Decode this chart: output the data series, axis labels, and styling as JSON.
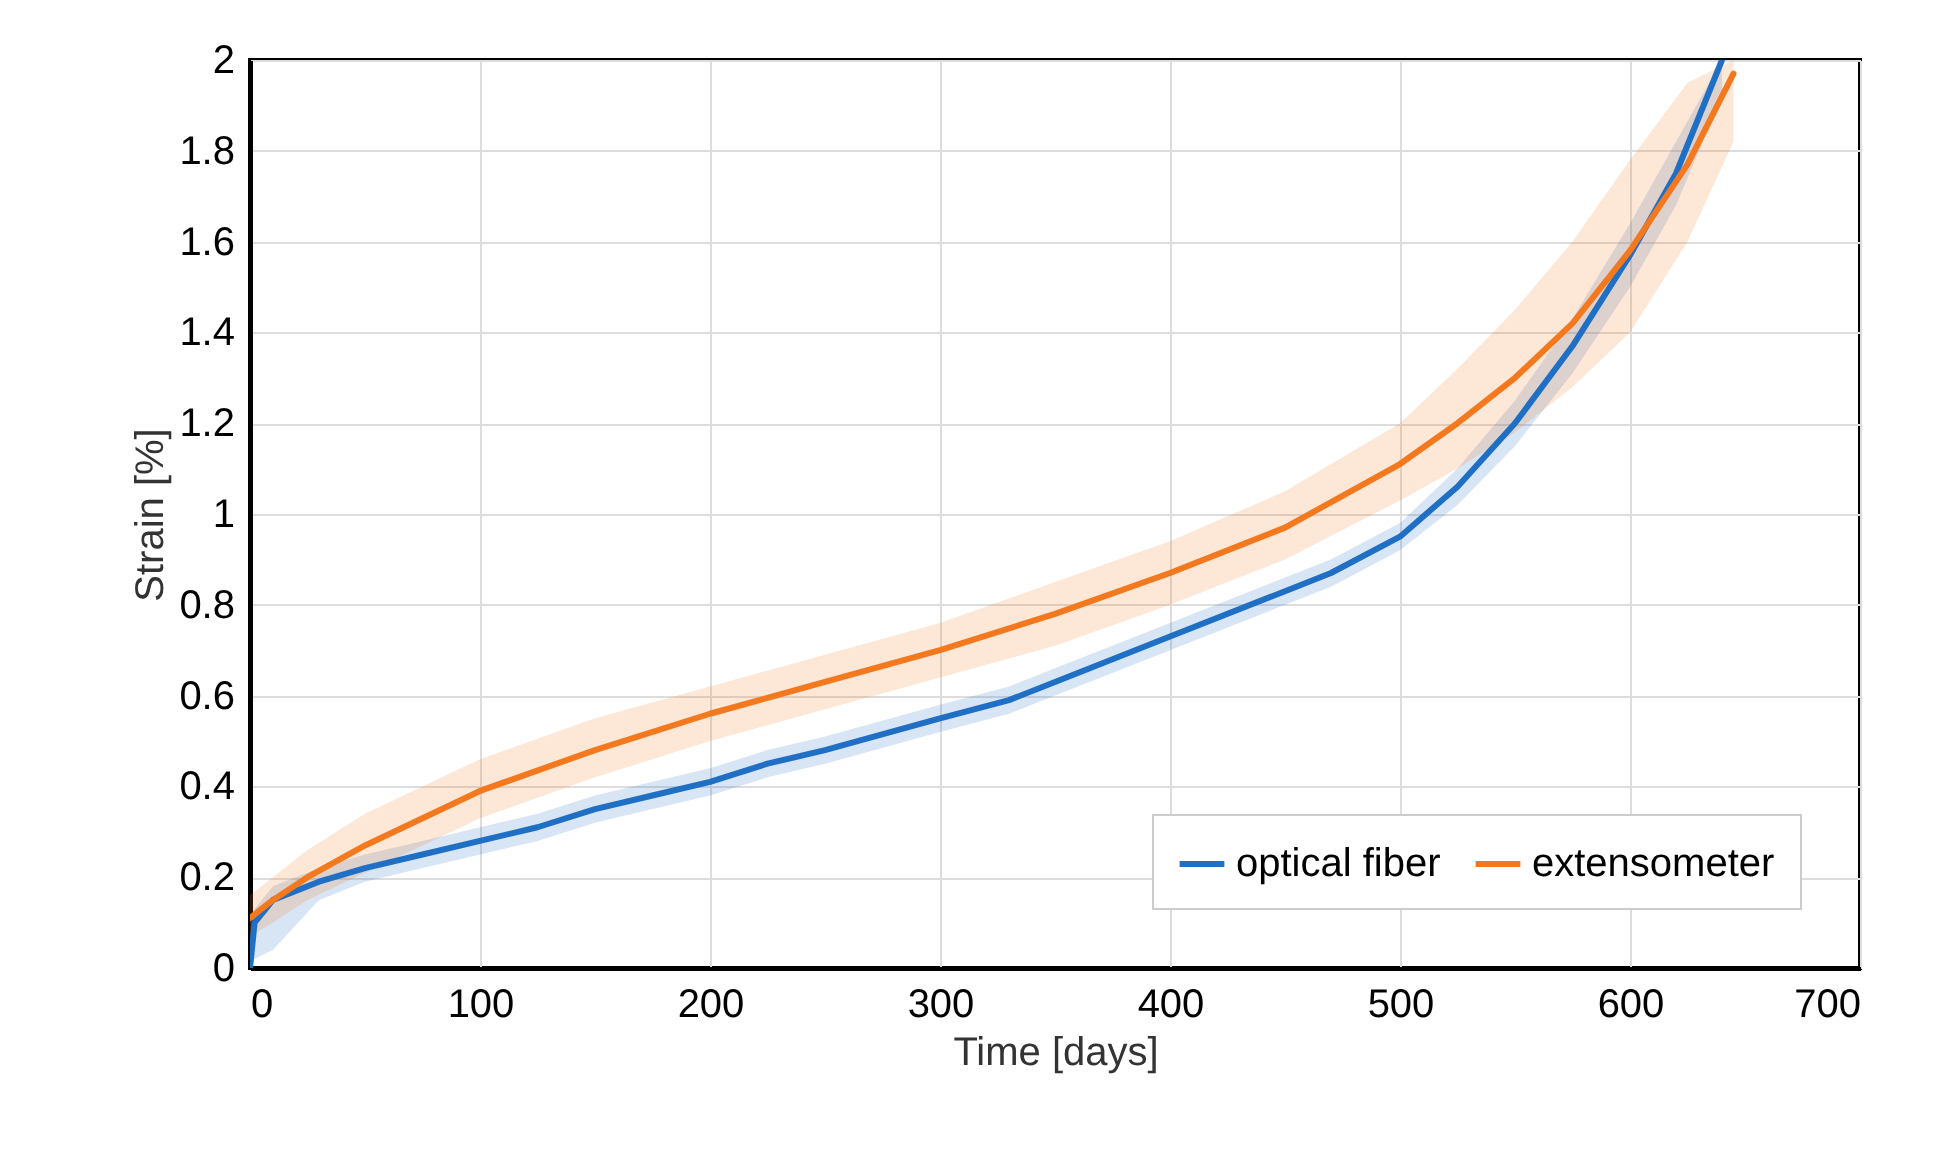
{
  "chart_data": {
    "type": "line",
    "xlabel": "Time [days]",
    "ylabel": "Strain [%]",
    "xlim": [
      0,
      700
    ],
    "xticks": [
      0,
      100,
      200,
      300,
      400,
      500,
      600,
      700
    ],
    "ylim": [
      0,
      2
    ],
    "yticks": [
      0,
      0.2,
      0.4,
      0.6,
      0.8,
      1,
      1.2,
      1.4,
      1.6,
      1.8,
      2
    ],
    "grid": true,
    "legend": "bottom right",
    "marker": "none",
    "line_style": "solid",
    "series": [
      {
        "name": "optical fiber",
        "color": "#1f6fc5",
        "x": [
          0,
          2,
          10,
          30,
          50,
          75,
          100,
          125,
          150,
          175,
          200,
          225,
          250,
          300,
          330,
          350,
          400,
          450,
          470,
          500,
          525,
          550,
          575,
          600,
          620,
          640
        ],
        "values": [
          0,
          0.1,
          0.15,
          0.19,
          0.22,
          0.25,
          0.28,
          0.31,
          0.35,
          0.38,
          0.41,
          0.45,
          0.48,
          0.55,
          0.59,
          0.63,
          0.73,
          0.83,
          0.87,
          0.95,
          1.06,
          1.2,
          1.37,
          1.57,
          1.75,
          2
        ],
        "lower": [
          0,
          0.02,
          0.04,
          0.15,
          0.19,
          0.22,
          0.25,
          0.28,
          0.32,
          0.35,
          0.38,
          0.42,
          0.45,
          0.52,
          0.56,
          0.6,
          0.7,
          0.8,
          0.84,
          0.92,
          1.02,
          1.15,
          1.31,
          1.5,
          1.68,
          1.92
        ],
        "upper": [
          0.1,
          0.13,
          0.18,
          0.22,
          0.25,
          0.28,
          0.31,
          0.34,
          0.38,
          0.41,
          0.44,
          0.48,
          0.51,
          0.58,
          0.62,
          0.66,
          0.76,
          0.86,
          0.9,
          0.98,
          1.1,
          1.25,
          1.43,
          1.64,
          1.82,
          2
        ]
      },
      {
        "name": "extensometer",
        "color": "#f4781e",
        "x": [
          0,
          10,
          25,
          50,
          75,
          100,
          150,
          200,
          250,
          300,
          350,
          400,
          450,
          500,
          525,
          550,
          575,
          600,
          625,
          645
        ],
        "values": [
          0.11,
          0.15,
          0.2,
          0.27,
          0.33,
          0.39,
          0.48,
          0.56,
          0.63,
          0.7,
          0.78,
          0.87,
          0.97,
          1.11,
          1.2,
          1.3,
          1.42,
          1.58,
          1.77,
          1.97
        ],
        "lower": [
          0.07,
          0.1,
          0.15,
          0.21,
          0.27,
          0.33,
          0.42,
          0.5,
          0.57,
          0.64,
          0.71,
          0.8,
          0.9,
          1.03,
          1.1,
          1.18,
          1.28,
          1.4,
          1.6,
          1.82
        ],
        "upper": [
          0.16,
          0.2,
          0.26,
          0.34,
          0.4,
          0.46,
          0.55,
          0.62,
          0.69,
          0.76,
          0.85,
          0.94,
          1.05,
          1.2,
          1.32,
          1.45,
          1.6,
          1.78,
          1.95,
          2
        ]
      }
    ]
  }
}
